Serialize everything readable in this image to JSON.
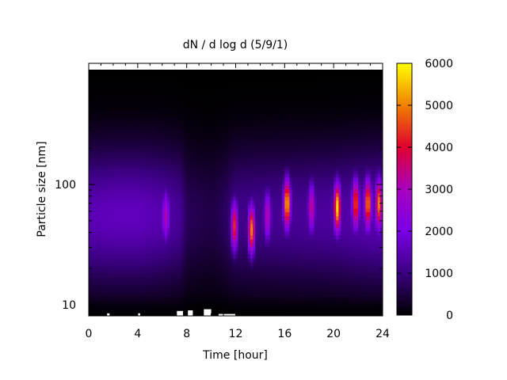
{
  "chart_data": {
    "type": "heatmap",
    "title": "dN / d log d (5/9/1)",
    "xlabel": "Time [hour]",
    "ylabel": "Particle size [nm]",
    "x_range": [
      0,
      24
    ],
    "y_range": [
      8.1,
      900
    ],
    "y_scale": "log",
    "x_ticks": [
      "0",
      "4",
      "8",
      "12",
      "16",
      "20",
      "24"
    ],
    "x_tick_values": [
      0,
      4,
      8,
      12,
      16,
      20,
      24
    ],
    "y_ticks": [
      "10",
      "100"
    ],
    "y_tick_values": [
      10,
      100
    ],
    "colorbar": {
      "range": [
        0,
        6000
      ],
      "ticks": [
        "0",
        "1000",
        "2000",
        "3000",
        "4000",
        "5000",
        "6000"
      ],
      "tick_values": [
        0,
        1000,
        2000,
        3000,
        4000,
        5000,
        6000
      ],
      "palette": [
        "#000000",
        "#3a0080",
        "#7a00e6",
        "#a800c0",
        "#e00030",
        "#f08000",
        "#ffff00"
      ]
    },
    "background_level": {
      "time": [
        0,
        2,
        4,
        6,
        7.5,
        8,
        10,
        11,
        12,
        14,
        16,
        18,
        20,
        22,
        24
      ],
      "value": [
        1500,
        1600,
        1600,
        1450,
        1200,
        700,
        550,
        700,
        1100,
        1150,
        1200,
        1250,
        1300,
        1450,
        1550
      ]
    },
    "peak_size_nm": 55,
    "modes": [
      {
        "time": 6.3,
        "size_nm": 55,
        "value": 2300
      },
      {
        "time": 11.9,
        "size_nm": 45,
        "value": 3700
      },
      {
        "time": 13.3,
        "size_nm": 42,
        "value": 4400
      },
      {
        "time": 14.6,
        "size_nm": 55,
        "value": 2600
      },
      {
        "time": 16.2,
        "size_nm": 70,
        "value": 4900
      },
      {
        "time": 18.2,
        "size_nm": 65,
        "value": 2800
      },
      {
        "time": 20.3,
        "size_nm": 65,
        "value": 5000
      },
      {
        "time": 21.8,
        "size_nm": 70,
        "value": 3900
      },
      {
        "time": 22.8,
        "size_nm": 70,
        "value": 4300
      },
      {
        "time": 23.7,
        "size_nm": 70,
        "value": 4100
      }
    ],
    "missing_data": [
      {
        "time_start": 7.2,
        "time_end": 7.7,
        "size_nm_min": 8.1,
        "size_nm_max": 8.9
      },
      {
        "time_start": 8.1,
        "time_end": 8.5,
        "size_nm_min": 8.1,
        "size_nm_max": 9.0
      },
      {
        "time_start": 9.4,
        "time_end": 10.0,
        "size_nm_min": 8.1,
        "size_nm_max": 9.2
      },
      {
        "time_start": 1.5,
        "time_end": 1.7,
        "size_nm_min": 8.1,
        "size_nm_max": 8.5
      },
      {
        "time_start": 4.0,
        "time_end": 4.2,
        "size_nm_min": 8.1,
        "size_nm_max": 8.5
      },
      {
        "time_start": 10.6,
        "time_end": 12.0,
        "size_nm_min": 8.1,
        "size_nm_max": 8.4
      }
    ]
  }
}
